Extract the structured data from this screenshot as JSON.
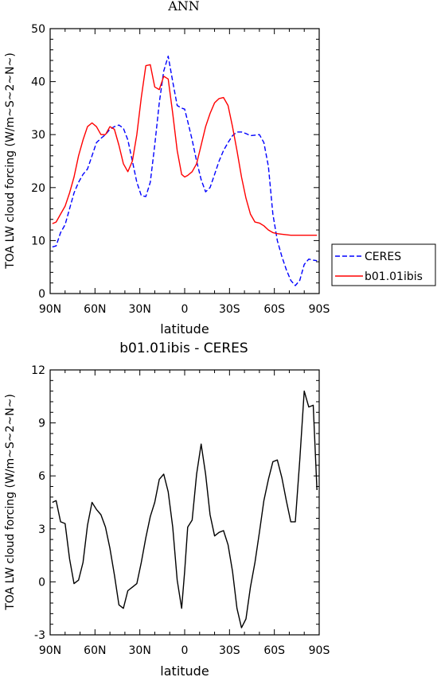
{
  "chart_data": [
    {
      "type": "line",
      "title": "ANN",
      "xlabel": "latitude",
      "ylabel": "TOA LW cloud forcing (W/m~S~2~N~)",
      "xlim": [
        90,
        -90
      ],
      "ylim": [
        0,
        50
      ],
      "xticks": [
        90,
        60,
        30,
        0,
        -30,
        -60,
        -90
      ],
      "xticklabels": [
        "90N",
        "60N",
        "30N",
        "0",
        "30S",
        "60S",
        "90S"
      ],
      "yticks": [
        0,
        10,
        20,
        30,
        40,
        50
      ],
      "yticklabels": [
        "0",
        "10",
        "20",
        "30",
        "40",
        "50"
      ],
      "legend": {
        "placement": "right-outside",
        "entries": [
          "CERES",
          "b01.01ibis"
        ]
      },
      "series": [
        {
          "name": "CERES",
          "color": "#0000ff",
          "dash": "dashed",
          "x": [
            88.5,
            86,
            83,
            80,
            77,
            74,
            71,
            68,
            65,
            62,
            59,
            56,
            53,
            50,
            47,
            44,
            41,
            38,
            35,
            32,
            29,
            26,
            23,
            20,
            17,
            14,
            11,
            8,
            5,
            2,
            0,
            -2,
            -5,
            -8,
            -11,
            -14,
            -17,
            -20,
            -23,
            -26,
            -29,
            -32,
            -35,
            -38,
            -41,
            -44,
            -47,
            -50,
            -53,
            -56,
            -59,
            -62,
            -65,
            -68,
            -71,
            -74,
            -77,
            -80,
            -83,
            -86,
            -88.5
          ],
          "y": [
            8.8,
            9.0,
            11.5,
            13.0,
            16.0,
            19.0,
            21.0,
            22.5,
            23.5,
            26.0,
            28.5,
            29.3,
            30.0,
            31.0,
            31.5,
            31.8,
            31.2,
            29.0,
            25.0,
            21.0,
            18.5,
            18.3,
            21.0,
            28.0,
            36.0,
            42.0,
            44.8,
            40.0,
            35.5,
            35.0,
            34.8,
            32.5,
            29.0,
            25.0,
            21.5,
            19.2,
            20.0,
            22.5,
            25.0,
            27.0,
            28.5,
            29.8,
            30.5,
            30.5,
            30.2,
            29.8,
            29.9,
            30.0,
            28.5,
            24.0,
            15.0,
            10.0,
            7.0,
            4.5,
            2.5,
            1.5,
            2.5,
            5.5,
            6.5,
            6.3,
            6.2
          ]
        },
        {
          "name": "b01.01ibis",
          "color": "#ff0000",
          "dash": "solid",
          "x": [
            88.5,
            86,
            83,
            80,
            77,
            74,
            71,
            68,
            65,
            62,
            59,
            56,
            53,
            50,
            47,
            44,
            41,
            38,
            35,
            32,
            29,
            26,
            23,
            20,
            17,
            14,
            11,
            8,
            5,
            2,
            0,
            -2,
            -5,
            -8,
            -11,
            -14,
            -17,
            -20,
            -23,
            -26,
            -29,
            -32,
            -35,
            -38,
            -41,
            -44,
            -47,
            -50,
            -53,
            -56,
            -59,
            -62,
            -65,
            -68,
            -71,
            -74,
            -77,
            -80,
            -83,
            -86,
            -88.5
          ],
          "y": [
            13.2,
            13.5,
            15.0,
            16.5,
            19.0,
            22.0,
            26.0,
            29.0,
            31.5,
            32.2,
            31.5,
            30.0,
            30.0,
            31.5,
            31.0,
            28.0,
            24.5,
            23.0,
            25.0,
            30.0,
            37.0,
            43.0,
            43.2,
            39.0,
            38.5,
            41.0,
            40.5,
            34.0,
            27.0,
            22.5,
            22.0,
            22.3,
            23.0,
            24.5,
            28.0,
            31.5,
            34.0,
            36.0,
            36.8,
            37.0,
            35.5,
            31.5,
            27.0,
            22.0,
            18.0,
            15.0,
            13.5,
            13.3,
            12.8,
            12.0,
            11.5,
            11.3,
            11.2,
            11.1,
            11.0,
            11.0,
            11.0,
            11.0,
            11.0,
            11.0,
            11.0
          ]
        }
      ]
    },
    {
      "type": "line",
      "title": "b01.01ibis - CERES",
      "xlabel": "latitude",
      "ylabel": "TOA LW cloud forcing (W/m~S~2~N~)",
      "xlim": [
        90,
        -90
      ],
      "ylim": [
        -3,
        12
      ],
      "xticks": [
        90,
        60,
        30,
        0,
        -30,
        -60,
        -90
      ],
      "xticklabels": [
        "90N",
        "60N",
        "30N",
        "0",
        "30S",
        "60S",
        "90S"
      ],
      "yticks": [
        -3,
        0,
        3,
        6,
        9,
        12
      ],
      "yticklabels": [
        "-3",
        "0",
        "3",
        "6",
        "9",
        "12"
      ],
      "series": [
        {
          "color": "#000000",
          "dash": "solid",
          "x": [
            88.5,
            86,
            83,
            80,
            77,
            74,
            71,
            68,
            65,
            62,
            59,
            56,
            53,
            50,
            47,
            44,
            41,
            38,
            35,
            32,
            29,
            26,
            23,
            20,
            17,
            14,
            11,
            8,
            5,
            2,
            0,
            -2,
            -5,
            -8,
            -11,
            -14,
            -17,
            -20,
            -23,
            -26,
            -29,
            -32,
            -35,
            -38,
            -41,
            -44,
            -47,
            -50,
            -53,
            -56,
            -59,
            -62,
            -65,
            -68,
            -71,
            -74,
            -77,
            -80,
            -83,
            -86,
            -88.5
          ],
          "y": [
            4.5,
            4.6,
            3.4,
            3.3,
            1.3,
            -0.1,
            0.1,
            1.1,
            3.2,
            4.5,
            4.1,
            3.8,
            3.1,
            1.9,
            0.4,
            -1.3,
            -1.5,
            -0.5,
            -0.3,
            -0.1,
            1.1,
            2.5,
            3.7,
            4.5,
            5.8,
            6.1,
            5.1,
            3.1,
            0.1,
            -1.5,
            0.6,
            3.1,
            3.5,
            6.1,
            7.8,
            6.1,
            3.8,
            2.6,
            2.8,
            2.9,
            2.1,
            0.6,
            -1.5,
            -2.6,
            -2.1,
            -0.3,
            1.1,
            2.8,
            4.6,
            5.8,
            6.8,
            6.9,
            5.9,
            4.6,
            3.4,
            3.4,
            6.9,
            10.8,
            9.9,
            10.0,
            5.2
          ]
        }
      ]
    }
  ]
}
